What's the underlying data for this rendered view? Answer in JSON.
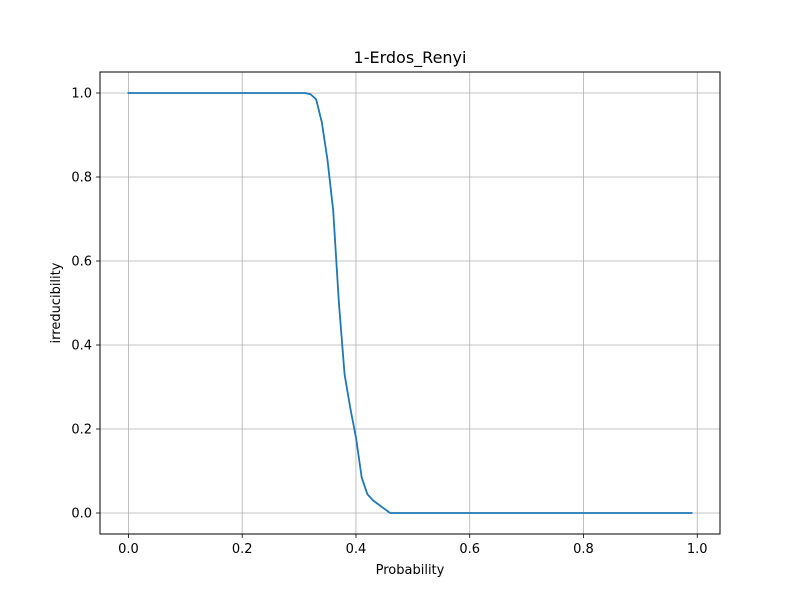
{
  "chart_data": {
    "type": "line",
    "title": "1-Erdos_Renyi",
    "xlabel": "Probability",
    "ylabel": "irreducibility",
    "xlim": [
      -0.05,
      1.04
    ],
    "ylim": [
      -0.05,
      1.05
    ],
    "xticks": [
      0.0,
      0.2,
      0.4,
      0.6,
      0.8,
      1.0
    ],
    "xtick_labels": [
      "0.0",
      "0.2",
      "0.4",
      "0.6",
      "0.8",
      "1.0"
    ],
    "yticks": [
      0.0,
      0.2,
      0.4,
      0.6,
      0.8,
      1.0
    ],
    "ytick_labels": [
      "0.0",
      "0.2",
      "0.4",
      "0.6",
      "0.8",
      "1.0"
    ],
    "grid": true,
    "series": [
      {
        "color": "#1f77b4",
        "x": [
          0.0,
          0.01,
          0.02,
          0.03,
          0.04,
          0.05,
          0.06,
          0.07,
          0.08,
          0.09,
          0.1,
          0.11,
          0.12,
          0.13,
          0.14,
          0.15,
          0.16,
          0.17,
          0.18,
          0.19,
          0.2,
          0.21,
          0.22,
          0.23,
          0.24,
          0.25,
          0.26,
          0.27,
          0.28,
          0.29,
          0.3,
          0.31,
          0.32,
          0.33,
          0.34,
          0.35,
          0.36,
          0.37,
          0.38,
          0.39,
          0.4,
          0.41,
          0.42,
          0.43,
          0.44,
          0.45,
          0.46,
          0.47,
          0.48,
          0.49,
          0.5,
          0.51,
          0.52,
          0.53,
          0.54,
          0.55,
          0.56,
          0.57,
          0.58,
          0.59,
          0.6,
          0.61,
          0.62,
          0.63,
          0.64,
          0.65,
          0.66,
          0.67,
          0.68,
          0.69,
          0.7,
          0.71,
          0.72,
          0.73,
          0.74,
          0.75,
          0.76,
          0.77,
          0.78,
          0.79,
          0.8,
          0.81,
          0.82,
          0.83,
          0.84,
          0.85,
          0.86,
          0.87,
          0.88,
          0.89,
          0.9,
          0.91,
          0.92,
          0.93,
          0.94,
          0.95,
          0.96,
          0.97,
          0.98,
          0.99
        ],
        "y": [
          1.0,
          1.0,
          1.0,
          1.0,
          1.0,
          1.0,
          1.0,
          1.0,
          1.0,
          1.0,
          1.0,
          1.0,
          1.0,
          1.0,
          1.0,
          1.0,
          1.0,
          1.0,
          1.0,
          1.0,
          1.0,
          1.0,
          1.0,
          1.0,
          1.0,
          1.0,
          1.0,
          1.0,
          1.0,
          1.0,
          1.0,
          1.0,
          0.997,
          0.985,
          0.93,
          0.84,
          0.72,
          0.5,
          0.33,
          0.25,
          0.18,
          0.085,
          0.045,
          0.03,
          0.02,
          0.01,
          0.0,
          0.0,
          0.0,
          0.0,
          0.0,
          0.0,
          0.0,
          0.0,
          0.0,
          0.0,
          0.0,
          0.0,
          0.0,
          0.0,
          0.0,
          0.0,
          0.0,
          0.0,
          0.0,
          0.0,
          0.0,
          0.0,
          0.0,
          0.0,
          0.0,
          0.0,
          0.0,
          0.0,
          0.0,
          0.0,
          0.0,
          0.0,
          0.0,
          0.0,
          0.0,
          0.0,
          0.0,
          0.0,
          0.0,
          0.0,
          0.0,
          0.0,
          0.0,
          0.0,
          0.0,
          0.0,
          0.0,
          0.0,
          0.0,
          0.0,
          0.0,
          0.0,
          0.0,
          0.0
        ]
      }
    ]
  }
}
